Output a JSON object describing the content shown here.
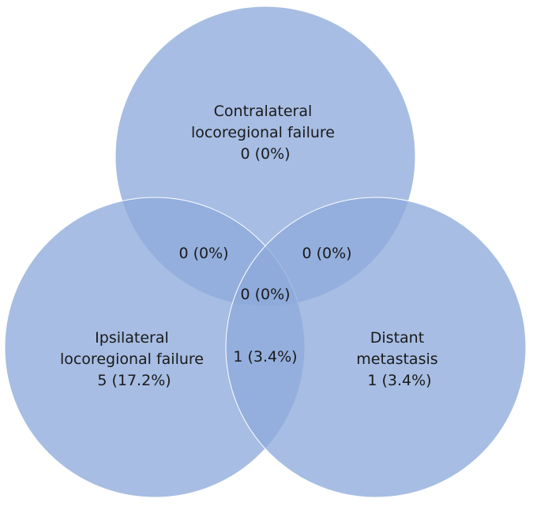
{
  "sets": [
    {
      "id": "contralateral",
      "lines": [
        "Contralateral",
        "locoregional failure",
        "0 (0%)"
      ]
    },
    {
      "id": "ipsilateral",
      "lines": [
        "Ipsilateral",
        "locoregional failure",
        "5 (17.2%)"
      ]
    },
    {
      "id": "distant",
      "lines": [
        "Distant",
        "metastasis",
        "1 (3.4%)"
      ]
    }
  ],
  "intersections": {
    "contralateral_ipsilateral": "0 (0%)",
    "contralateral_distant": "0 (0%)",
    "ipsilateral_distant": "1 (3.4%)",
    "all_three": "0 (0%)"
  },
  "colors": {
    "circle_fill": "#8eaadb",
    "circle_stroke": "#ffffff"
  }
}
